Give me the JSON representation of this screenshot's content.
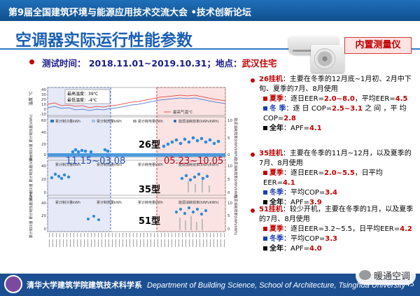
{
  "header": {
    "title": "第9届全国建筑环境与能源应用技术交流大会 •技术创新论坛"
  },
  "slide": {
    "title": "空调器实际运行性能参数",
    "badge": "内置测量仪"
  },
  "test_info": {
    "time_label": "测试时间： 2018.11.01~2019.10.31；地点：",
    "location": "武汉住宅"
  },
  "charts": {
    "temp": {
      "ylabel": "温度 ℃",
      "yticks": [
        "40",
        "30",
        "20",
        "10",
        "0",
        "-10"
      ],
      "max_temp": "最高温度：39℃",
      "min_temp": "最低温度：-4℃",
      "legend": "最高气温℃"
    },
    "unit26": {
      "model": "26型",
      "ylabel_left": "累计制冷量 累计制热量(kWh)",
      "ylabel_right": "能源消耗效率(kWh/kWh)",
      "yticks_left": [
        "60",
        "40",
        "20",
        "0"
      ],
      "yticks_right": [
        "10",
        "5",
        "0"
      ],
      "legend": [
        "累计制冷量kWh",
        "累计制热量kWh",
        "累计耗电量kWh",
        "能源消耗效率(kWh/kWh)"
      ]
    },
    "unit35": {
      "model": "35型",
      "ylabel_left": "累计制冷量 累计制热量(kWh)",
      "ylabel_right": "能源消耗效率(kWh/kWh)",
      "yticks_left": [
        "40",
        "20",
        "0"
      ],
      "yticks_right": [
        "10",
        "5",
        "0"
      ],
      "legend": [
        "累计制冷量kWh",
        "累计制热量kWh",
        "累计耗电量kWh",
        "能源消耗效率(kWh/kWh)"
      ]
    },
    "unit51": {
      "model": "51型",
      "ylabel_left": "累计制冷量 累计制热量(kWh)",
      "ylabel_right": "能源消耗效率(kWh/kWh)",
      "yticks_left": [
        "40",
        "20",
        "0"
      ],
      "yticks_right": [
        "10",
        "5",
        "0"
      ],
      "legend": [
        "累计制冷量kWh",
        "累计制热量kWh",
        "累计耗电量kWh",
        "能源消耗效率(kWh/kWh)"
      ]
    },
    "periods": {
      "winter": "11.15~03.08",
      "summer": "05.23~10.05"
    }
  },
  "right_panel": {
    "s26": {
      "model": "26挂机",
      "desc": "：主要在冬季的12月底~1月初、2月中下旬、夏季的7月、8月使用",
      "summer": {
        "label": "夏季",
        "text_a": "：逐日EER=",
        "val_a": "2.0~8.0",
        "text_b": "，平均EER=",
        "val_b": "4.5"
      },
      "winter": {
        "label": "冬 季",
        "text_a": "：逐 日 COP=",
        "val_a": "2.5~3.1",
        "text_b": " 之 间 ，平 均 COP=",
        "val_b": "2.8"
      },
      "annual": {
        "label": "全年",
        "text": "：APF=",
        "val": "4.1"
      }
    },
    "s35": {
      "model": "35挂机",
      "desc": "：主要在冬季的11月~12月，以及夏季的7月、8月使用",
      "summer": {
        "label": "夏季",
        "text_a": "：逐日EER=",
        "val_a": "2.0~5.5",
        "text_b": "，日平均EER=",
        "val_b": "4.1"
      },
      "winter": {
        "label": "冬季",
        "text_a": "：平均COP=",
        "val_a": "3.4"
      },
      "annual": {
        "label": "全年",
        "text": "：APF=",
        "val": "3.9"
      }
    },
    "s51": {
      "model": "51挂机",
      "desc": "：较少开机，主要在冬季的1月，以及夏季的7月、8月使用",
      "summer": {
        "label": "夏季",
        "text_a": "：逐日EER=3.2~5.5，日平均EER=",
        "val_a": "4.2"
      },
      "winter": {
        "label": "冬季",
        "text_a": "：平均COP=",
        "val_a": "3.3"
      },
      "annual": {
        "label": "全年",
        "text": "：APF=",
        "val": "4.0"
      }
    }
  },
  "footer": {
    "cn": "清华大学建筑学院建筑技术科学系",
    "en": "Department of Building Science, School of Architecture, Tsinghua University",
    "page": "45"
  },
  "watermark": "暖通空调",
  "colors": {
    "accent": "#1a5fb4",
    "red": "#c00000",
    "footer": "#1b4f91"
  }
}
